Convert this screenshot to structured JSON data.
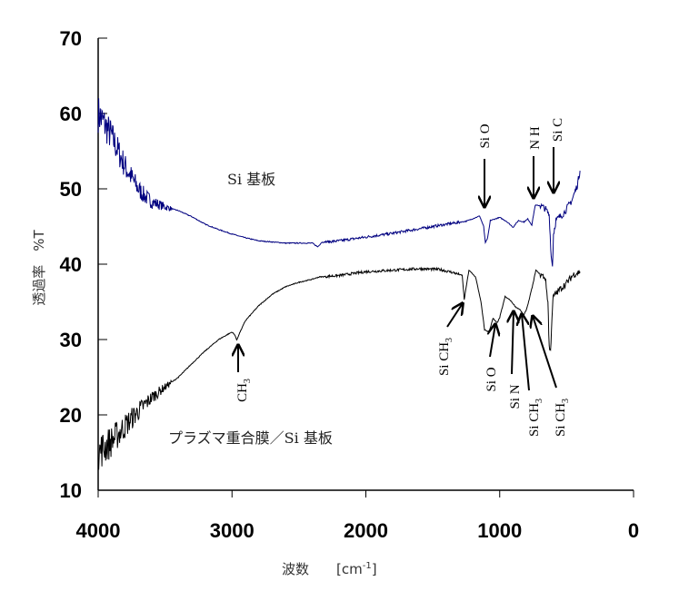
{
  "chart_data": {
    "type": "line",
    "title": "",
    "xlabel": "波数　　[cm",
    "xlabel_sup": "-1",
    "xlabel_end": "]",
    "ylabel": "透過率　%T",
    "xlim": [
      4000,
      0
    ],
    "ylim": [
      10,
      70
    ],
    "x_ticks": [
      4000,
      3000,
      2000,
      1000,
      0
    ],
    "y_ticks": [
      10,
      20,
      30,
      40,
      50,
      60,
      70
    ],
    "grid": false,
    "series": [
      {
        "name": "Si 基板",
        "color": "#000080",
        "points": [
          [
            4000,
            60
          ],
          [
            3950,
            58.5
          ],
          [
            3900,
            57
          ],
          [
            3850,
            55
          ],
          [
            3800,
            53
          ],
          [
            3750,
            51.5
          ],
          [
            3700,
            50
          ],
          [
            3650,
            49
          ],
          [
            3600,
            48.3
          ],
          [
            3500,
            47.6
          ],
          [
            3400,
            47.1
          ],
          [
            3300,
            46.3
          ],
          [
            3200,
            45.3
          ],
          [
            3100,
            44.6
          ],
          [
            3000,
            44
          ],
          [
            2900,
            43.5
          ],
          [
            2800,
            43.1
          ],
          [
            2600,
            42.8
          ],
          [
            2400,
            42.8
          ],
          [
            2360,
            42.3
          ],
          [
            2330,
            42.9
          ],
          [
            2200,
            43.1
          ],
          [
            2000,
            43.6
          ],
          [
            1800,
            44.1
          ],
          [
            1600,
            44.7
          ],
          [
            1400,
            45.3
          ],
          [
            1250,
            45.7
          ],
          [
            1150,
            46.4
          ],
          [
            1120,
            45
          ],
          [
            1107,
            42.8
          ],
          [
            1090,
            43.5
          ],
          [
            1070,
            45.8
          ],
          [
            1000,
            46.2
          ],
          [
            950,
            45.7
          ],
          [
            900,
            44.9
          ],
          [
            860,
            45.8
          ],
          [
            820,
            45.6
          ],
          [
            790,
            46
          ],
          [
            760,
            45.2
          ],
          [
            735,
            47.8
          ],
          [
            700,
            47.8
          ],
          [
            660,
            47.4
          ],
          [
            630,
            46.5
          ],
          [
            615,
            41
          ],
          [
            606,
            39.8
          ],
          [
            598,
            44
          ],
          [
            580,
            45.8
          ],
          [
            520,
            46.8
          ],
          [
            460,
            48.5
          ],
          [
            420,
            50.5
          ],
          [
            400,
            52.4
          ]
        ]
      },
      {
        "name": "プラズマ重合膜／Si 基板",
        "color": "#000000",
        "points": [
          [
            4000,
            15
          ],
          [
            3900,
            16.5
          ],
          [
            3800,
            18.5
          ],
          [
            3700,
            20.5
          ],
          [
            3600,
            22.3
          ],
          [
            3500,
            23.7
          ],
          [
            3400,
            25
          ],
          [
            3300,
            26.8
          ],
          [
            3200,
            28.5
          ],
          [
            3100,
            30
          ],
          [
            3000,
            31
          ],
          [
            2975,
            30.5
          ],
          [
            2965,
            29.9
          ],
          [
            2950,
            30.6
          ],
          [
            2900,
            32.5
          ],
          [
            2800,
            34.5
          ],
          [
            2700,
            36
          ],
          [
            2600,
            37
          ],
          [
            2500,
            37.6
          ],
          [
            2400,
            38
          ],
          [
            2350,
            38.3
          ],
          [
            2200,
            38.5
          ],
          [
            2000,
            39
          ],
          [
            1800,
            39.2
          ],
          [
            1600,
            39.4
          ],
          [
            1450,
            39.3
          ],
          [
            1350,
            38.9
          ],
          [
            1280,
            38.5
          ],
          [
            1265,
            35.3
          ],
          [
            1250,
            37
          ],
          [
            1230,
            39.2
          ],
          [
            1180,
            38.3
          ],
          [
            1140,
            35
          ],
          [
            1113,
            31.3
          ],
          [
            1080,
            31
          ],
          [
            1050,
            32.8
          ],
          [
            1020,
            32.2
          ],
          [
            1000,
            32.9
          ],
          [
            960,
            35.7
          ],
          [
            920,
            35.2
          ],
          [
            880,
            34.3
          ],
          [
            850,
            34
          ],
          [
            820,
            33.2
          ],
          [
            800,
            34
          ],
          [
            780,
            35.3
          ],
          [
            750,
            37.5
          ],
          [
            730,
            39.2
          ],
          [
            700,
            38.7
          ],
          [
            660,
            38.2
          ],
          [
            640,
            35
          ],
          [
            630,
            29
          ],
          [
            620,
            28.4
          ],
          [
            610,
            33
          ],
          [
            600,
            35.7
          ],
          [
            560,
            36.5
          ],
          [
            500,
            37.5
          ],
          [
            450,
            38.6
          ],
          [
            400,
            39
          ]
        ]
      }
    ],
    "annotations": {
      "top_label": "Si 基板",
      "bottom_label": "プラズマ重合膜／Si 基板",
      "peaks": [
        {
          "text": "Si O",
          "sub": "",
          "wavenumber": 1107
        },
        {
          "text": "N H",
          "sub": "",
          "wavenumber": 760
        },
        {
          "text": "Si C",
          "sub": "",
          "wavenumber": 606
        },
        {
          "text": "CH",
          "sub": "3",
          "wavenumber": 2965
        },
        {
          "text": "Si CH",
          "sub": "3",
          "wavenumber": 1265
        },
        {
          "text": "Si O",
          "sub": "",
          "wavenumber": 1050
        },
        {
          "text": "Si N",
          "sub": "",
          "wavenumber": 880
        },
        {
          "text": "Si CH",
          "sub": "3",
          "wavenumber": 820
        },
        {
          "text": "Si CH",
          "sub": "3",
          "wavenumber": 760
        }
      ]
    }
  }
}
